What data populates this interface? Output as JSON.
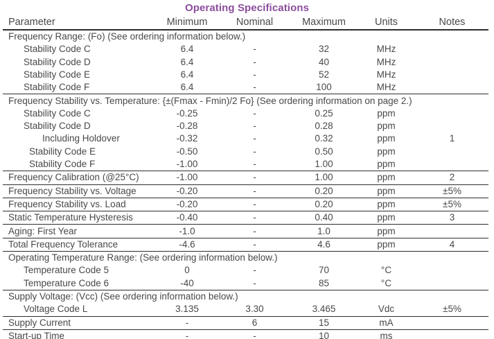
{
  "title": "Operating Specifications",
  "colors": {
    "accent": "#8b4d9c",
    "text": "#48484a",
    "line": "#2c2c2e"
  },
  "table": {
    "columns": [
      "Parameter",
      "Minimum",
      "Nominal",
      "Maximum",
      "Units",
      "Notes"
    ],
    "rows": [
      {
        "type": "section",
        "indent": 0,
        "label": "Frequency Range: (Fo) (See ordering information below.)",
        "rule": false
      },
      {
        "type": "data",
        "indent": 1,
        "cells": [
          "Stability Code C",
          "6.4",
          "-",
          "32",
          "MHz",
          ""
        ],
        "rule": false
      },
      {
        "type": "data",
        "indent": 1,
        "cells": [
          "Stability Code D",
          "6.4",
          "-",
          "40",
          "MHz",
          ""
        ],
        "rule": false
      },
      {
        "type": "data",
        "indent": 1,
        "cells": [
          "Stability Code E",
          "6.4",
          "-",
          "52",
          "MHz",
          ""
        ],
        "rule": false
      },
      {
        "type": "data",
        "indent": 1,
        "cells": [
          "Stability Code F",
          "6.4",
          "-",
          "100",
          "MHz",
          ""
        ],
        "rule": true
      },
      {
        "type": "section",
        "indent": 0,
        "label": "Frequency Stability vs. Temperature: {±(Fmax - Fmin)/2 Fo} (See ordering information on page 2.)",
        "rule": false
      },
      {
        "type": "data",
        "indent": 1,
        "cells": [
          "Stability Code C",
          "-0.25",
          "-",
          "0.25",
          "ppm",
          ""
        ],
        "rule": false
      },
      {
        "type": "data",
        "indent": 1,
        "cells": [
          "Stability Code D",
          "-0.28",
          "-",
          "0.28",
          "ppm",
          ""
        ],
        "rule": false
      },
      {
        "type": "data",
        "indent": 3,
        "cells": [
          "Including Holdover",
          "-0.32",
          "-",
          "0.32",
          "ppm",
          "1"
        ],
        "rule": false
      },
      {
        "type": "data",
        "indent": 2,
        "cells": [
          "Stability Code E",
          "-0.50",
          "-",
          "0.50",
          "ppm",
          ""
        ],
        "rule": false
      },
      {
        "type": "data",
        "indent": 2,
        "cells": [
          "Stability Code F",
          "-1.00",
          "-",
          "1.00",
          "ppm",
          ""
        ],
        "rule": true
      },
      {
        "type": "data",
        "indent": 0,
        "cells": [
          "Frequency Calibration (@25°C)",
          "-1.00",
          "-",
          "1.00",
          "ppm",
          "2"
        ],
        "rule": true
      },
      {
        "type": "data",
        "indent": 0,
        "cells": [
          "Frequency Stability vs. Voltage",
          "-0.20",
          "-",
          "0.20",
          "ppm",
          "±5%"
        ],
        "rule": true
      },
      {
        "type": "data",
        "indent": 0,
        "cells": [
          "Frequency Stability vs. Load",
          "-0.20",
          "-",
          "0.20",
          "ppm",
          "±5%"
        ],
        "rule": true
      },
      {
        "type": "data",
        "indent": 0,
        "cells": [
          "Static Temperature Hysteresis",
          "-0.40",
          "-",
          "0.40",
          "ppm",
          "3"
        ],
        "rule": true
      },
      {
        "type": "data",
        "indent": 0,
        "cells": [
          "Aging: First Year",
          "-1.0",
          "-",
          "1.0",
          "ppm",
          ""
        ],
        "rule": true
      },
      {
        "type": "data",
        "indent": 0,
        "cells": [
          "Total Frequency Tolerance",
          "-4.6",
          "-",
          "4.6",
          "ppm",
          "4"
        ],
        "rule": true
      },
      {
        "type": "section",
        "indent": 0,
        "label": "Operating Temperature Range: (See ordering information below.)",
        "rule": false
      },
      {
        "type": "data",
        "indent": 1,
        "cells": [
          "Temperature Code 5",
          "0",
          "-",
          "70",
          "°C",
          ""
        ],
        "rule": false
      },
      {
        "type": "data",
        "indent": 1,
        "cells": [
          "Temperature Code 6",
          "-40",
          "-",
          "85",
          "°C",
          ""
        ],
        "rule": true
      },
      {
        "type": "section",
        "indent": 0,
        "label": "Supply Voltage: (Vcc) (See ordering information below.)",
        "rule": false
      },
      {
        "type": "data",
        "indent": 1,
        "cells": [
          "Voltage Code L",
          "3.135",
          "3.30",
          "3.465",
          "Vdc",
          "±5%"
        ],
        "rule": true
      },
      {
        "type": "data",
        "indent": 0,
        "cells": [
          "Supply Current",
          "-",
          "6",
          "15",
          "mA",
          ""
        ],
        "rule": true
      },
      {
        "type": "data",
        "indent": 0,
        "cells": [
          "Start-up Time",
          "-",
          "-",
          "10",
          "ms",
          ""
        ],
        "rule": true
      }
    ]
  }
}
